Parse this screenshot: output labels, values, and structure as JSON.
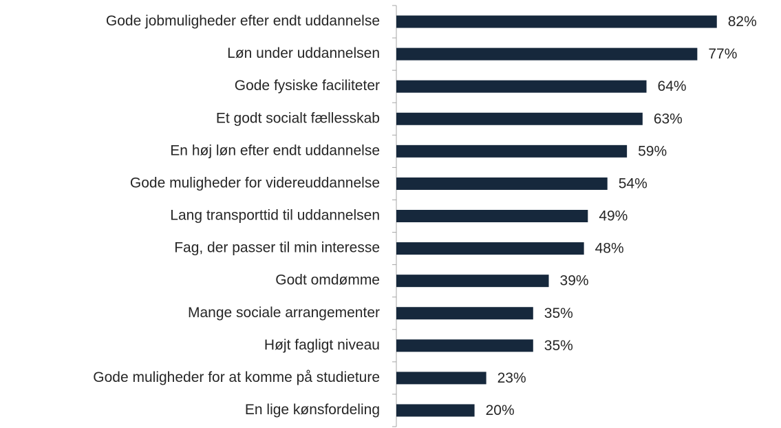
{
  "chart_data": {
    "type": "bar",
    "orientation": "horizontal",
    "categories": [
      "Gode jobmuligheder efter endt uddannelse",
      "Løn under uddannelsen",
      "Gode fysiske faciliteter",
      "Et godt socialt fællesskab",
      "En høj løn efter endt uddannelse",
      "Gode muligheder for videreuddannelse",
      "Lang transporttid til uddannelsen",
      "Fag, der passer til min interesse",
      "Godt omdømme",
      "Mange sociale arrangementer",
      "Højt fagligt niveau",
      "Gode muligheder for at komme på studieture",
      "En lige kønsfordeling"
    ],
    "values": [
      82,
      77,
      64,
      63,
      59,
      54,
      49,
      48,
      39,
      35,
      35,
      23,
      20
    ],
    "value_labels": [
      "82%",
      "77%",
      "64%",
      "63%",
      "59%",
      "54%",
      "49%",
      "48%",
      "39%",
      "35%",
      "35%",
      "23%",
      "20%"
    ],
    "color": "#16283c"
  }
}
